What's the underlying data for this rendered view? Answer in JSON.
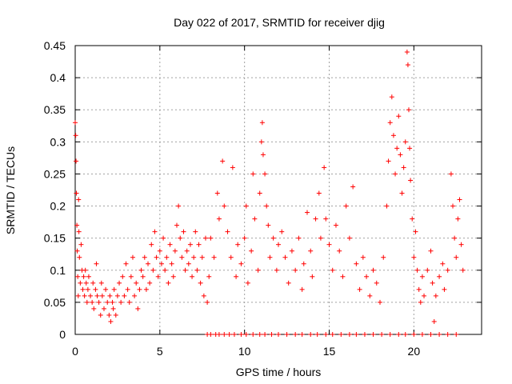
{
  "chart_data": {
    "type": "scatter",
    "title": "Day 022 of 2017, SRMTID for receiver djig",
    "xlabel": "GPS time / hours",
    "ylabel": "SRMTID / TECUs",
    "xlim": [
      0,
      24
    ],
    "ylim": [
      0,
      0.45
    ],
    "xticks": [
      0,
      5,
      10,
      15,
      20
    ],
    "xtick_labels": [
      "0",
      "5",
      "10",
      "15",
      "20"
    ],
    "yticks": [
      0,
      0.05,
      0.1,
      0.15,
      0.2,
      0.25,
      0.3,
      0.35,
      0.4,
      0.45
    ],
    "ytick_labels": [
      "0",
      "0.05",
      "0.1",
      "0.15",
      "0.2",
      "0.25",
      "0.3",
      "0.35",
      "0.4",
      "0.45"
    ],
    "grid": true,
    "marker": "+",
    "series": [
      {
        "name": "SRMTID",
        "color": "#ff0000",
        "points": [
          [
            0.0,
            0.33
          ],
          [
            0.03,
            0.31
          ],
          [
            0.05,
            0.27
          ],
          [
            0.07,
            0.22
          ],
          [
            0.1,
            0.17
          ],
          [
            0.12,
            0.13
          ],
          [
            0.15,
            0.09
          ],
          [
            0.18,
            0.06
          ],
          [
            0.2,
            0.21
          ],
          [
            0.22,
            0.16
          ],
          [
            0.25,
            0.12
          ],
          [
            0.3,
            0.08
          ],
          [
            0.35,
            0.14
          ],
          [
            0.4,
            0.1
          ],
          [
            0.45,
            0.07
          ],
          [
            0.5,
            0.09
          ],
          [
            0.55,
            0.06
          ],
          [
            0.6,
            0.1
          ],
          [
            0.65,
            0.08
          ],
          [
            0.7,
            0.05
          ],
          [
            0.75,
            0.07
          ],
          [
            0.8,
            0.09
          ],
          [
            0.9,
            0.06
          ],
          [
            1.0,
            0.05
          ],
          [
            1.05,
            0.08
          ],
          [
            1.1,
            0.04
          ],
          [
            1.2,
            0.07
          ],
          [
            1.25,
            0.11
          ],
          [
            1.3,
            0.06
          ],
          [
            1.4,
            0.05
          ],
          [
            1.5,
            0.03
          ],
          [
            1.55,
            0.08
          ],
          [
            1.6,
            0.06
          ],
          [
            1.7,
            0.04
          ],
          [
            1.8,
            0.07
          ],
          [
            1.9,
            0.05
          ],
          [
            2.0,
            0.03
          ],
          [
            2.05,
            0.06
          ],
          [
            2.1,
            0.02
          ],
          [
            2.2,
            0.05
          ],
          [
            2.25,
            0.04
          ],
          [
            2.3,
            0.07
          ],
          [
            2.4,
            0.03
          ],
          [
            2.5,
            0.06
          ],
          [
            2.6,
            0.08
          ],
          [
            2.7,
            0.05
          ],
          [
            2.8,
            0.09
          ],
          [
            2.9,
            0.06
          ],
          [
            3.0,
            0.11
          ],
          [
            3.1,
            0.07
          ],
          [
            3.2,
            0.05
          ],
          [
            3.3,
            0.09
          ],
          [
            3.4,
            0.12
          ],
          [
            3.5,
            0.06
          ],
          [
            3.6,
            0.08
          ],
          [
            3.7,
            0.04
          ],
          [
            3.8,
            0.07
          ],
          [
            3.9,
            0.1
          ],
          [
            4.0,
            0.09
          ],
          [
            4.1,
            0.12
          ],
          [
            4.2,
            0.07
          ],
          [
            4.3,
            0.11
          ],
          [
            4.4,
            0.08
          ],
          [
            4.5,
            0.14
          ],
          [
            4.6,
            0.1
          ],
          [
            4.7,
            0.16
          ],
          [
            4.8,
            0.12
          ],
          [
            4.9,
            0.09
          ],
          [
            5.0,
            0.13
          ],
          [
            5.1,
            0.11
          ],
          [
            5.2,
            0.15
          ],
          [
            5.3,
            0.1
          ],
          [
            5.4,
            0.12
          ],
          [
            5.5,
            0.08
          ],
          [
            5.6,
            0.14
          ],
          [
            5.7,
            0.11
          ],
          [
            5.8,
            0.09
          ],
          [
            5.9,
            0.13
          ],
          [
            6.0,
            0.17
          ],
          [
            6.1,
            0.2
          ],
          [
            6.2,
            0.15
          ],
          [
            6.3,
            0.12
          ],
          [
            6.4,
            0.16
          ],
          [
            6.5,
            0.1
          ],
          [
            6.6,
            0.13
          ],
          [
            6.7,
            0.11
          ],
          [
            6.8,
            0.14
          ],
          [
            6.9,
            0.09
          ],
          [
            7.0,
            0.12
          ],
          [
            7.1,
            0.16
          ],
          [
            7.2,
            0.1
          ],
          [
            7.3,
            0.14
          ],
          [
            7.4,
            0.08
          ],
          [
            7.5,
            0.12
          ],
          [
            7.6,
            0.06
          ],
          [
            7.7,
            0.15
          ],
          [
            7.8,
            0.05
          ],
          [
            7.9,
            0.09
          ],
          [
            8.0,
            0.15
          ],
          [
            8.2,
            0.12
          ],
          [
            8.4,
            0.22
          ],
          [
            8.5,
            0.18
          ],
          [
            8.7,
            0.27
          ],
          [
            8.8,
            0.2
          ],
          [
            9.0,
            0.16
          ],
          [
            9.2,
            0.12
          ],
          [
            9.3,
            0.26
          ],
          [
            9.5,
            0.09
          ],
          [
            9.6,
            0.14
          ],
          [
            9.8,
            0.11
          ],
          [
            10.0,
            0.15
          ],
          [
            10.1,
            0.2
          ],
          [
            10.2,
            0.08
          ],
          [
            10.4,
            0.13
          ],
          [
            10.5,
            0.25
          ],
          [
            10.6,
            0.18
          ],
          [
            10.8,
            0.1
          ],
          [
            10.9,
            0.22
          ],
          [
            11.0,
            0.3
          ],
          [
            11.05,
            0.33
          ],
          [
            11.1,
            0.28
          ],
          [
            11.2,
            0.25
          ],
          [
            11.3,
            0.2
          ],
          [
            11.4,
            0.17
          ],
          [
            11.5,
            0.12
          ],
          [
            11.7,
            0.15
          ],
          [
            11.9,
            0.1
          ],
          [
            12.0,
            0.14
          ],
          [
            12.2,
            0.16
          ],
          [
            12.4,
            0.12
          ],
          [
            12.6,
            0.08
          ],
          [
            12.8,
            0.13
          ],
          [
            13.0,
            0.1
          ],
          [
            13.2,
            0.15
          ],
          [
            13.4,
            0.07
          ],
          [
            13.5,
            0.11
          ],
          [
            13.7,
            0.19
          ],
          [
            13.9,
            0.13
          ],
          [
            14.0,
            0.09
          ],
          [
            14.2,
            0.18
          ],
          [
            14.4,
            0.22
          ],
          [
            14.5,
            0.15
          ],
          [
            14.7,
            0.26
          ],
          [
            14.8,
            0.18
          ],
          [
            15.0,
            0.14
          ],
          [
            15.2,
            0.1
          ],
          [
            15.4,
            0.17
          ],
          [
            15.6,
            0.13
          ],
          [
            15.8,
            0.09
          ],
          [
            16.0,
            0.2
          ],
          [
            16.2,
            0.15
          ],
          [
            16.4,
            0.23
          ],
          [
            16.6,
            0.11
          ],
          [
            16.8,
            0.07
          ],
          [
            17.0,
            0.12
          ],
          [
            17.2,
            0.09
          ],
          [
            17.4,
            0.06
          ],
          [
            17.6,
            0.1
          ],
          [
            17.8,
            0.08
          ],
          [
            18.0,
            0.05
          ],
          [
            18.2,
            0.12
          ],
          [
            18.4,
            0.2
          ],
          [
            18.5,
            0.27
          ],
          [
            18.6,
            0.33
          ],
          [
            18.7,
            0.37
          ],
          [
            18.8,
            0.31
          ],
          [
            18.9,
            0.25
          ],
          [
            19.0,
            0.29
          ],
          [
            19.1,
            0.34
          ],
          [
            19.2,
            0.28
          ],
          [
            19.3,
            0.22
          ],
          [
            19.4,
            0.26
          ],
          [
            19.5,
            0.3
          ],
          [
            19.6,
            0.44
          ],
          [
            19.65,
            0.42
          ],
          [
            19.7,
            0.35
          ],
          [
            19.75,
            0.29
          ],
          [
            19.8,
            0.24
          ],
          [
            19.9,
            0.18
          ],
          [
            20.0,
            0.12
          ],
          [
            20.1,
            0.16
          ],
          [
            20.2,
            0.1
          ],
          [
            20.3,
            0.07
          ],
          [
            20.4,
            0.05
          ],
          [
            20.5,
            0.09
          ],
          [
            20.6,
            0.06
          ],
          [
            20.8,
            0.1
          ],
          [
            21.0,
            0.13
          ],
          [
            21.1,
            0.08
          ],
          [
            21.2,
            0.02
          ],
          [
            21.3,
            0.06
          ],
          [
            21.5,
            0.09
          ],
          [
            21.7,
            0.11
          ],
          [
            21.8,
            0.07
          ],
          [
            22.0,
            0.1
          ],
          [
            22.2,
            0.25
          ],
          [
            22.3,
            0.2
          ],
          [
            22.4,
            0.15
          ],
          [
            22.5,
            0.12
          ],
          [
            22.6,
            0.18
          ],
          [
            22.7,
            0.21
          ],
          [
            22.8,
            0.14
          ],
          [
            22.9,
            0.1
          ],
          [
            7.8,
            0.0
          ],
          [
            8.0,
            0.0
          ],
          [
            8.3,
            0.0
          ],
          [
            8.5,
            0.0
          ],
          [
            8.8,
            0.0
          ],
          [
            9.1,
            0.0
          ],
          [
            9.4,
            0.0
          ],
          [
            9.8,
            0.0
          ],
          [
            10.1,
            0.0
          ],
          [
            10.5,
            0.0
          ],
          [
            10.9,
            0.0
          ],
          [
            11.2,
            0.0
          ],
          [
            11.6,
            0.0
          ],
          [
            12.0,
            0.0
          ],
          [
            12.5,
            0.0
          ],
          [
            13.0,
            0.0
          ],
          [
            13.4,
            0.0
          ],
          [
            13.9,
            0.0
          ],
          [
            14.3,
            0.0
          ],
          [
            14.8,
            0.0
          ],
          [
            15.2,
            0.0
          ],
          [
            15.7,
            0.0
          ],
          [
            16.2,
            0.0
          ],
          [
            16.6,
            0.0
          ],
          [
            17.1,
            0.0
          ],
          [
            17.6,
            0.0
          ],
          [
            18.1,
            0.0
          ],
          [
            18.6,
            0.0
          ],
          [
            19.1,
            0.0
          ],
          [
            19.5,
            0.0
          ],
          [
            20.0,
            0.0
          ],
          [
            20.5,
            0.0
          ],
          [
            21.0,
            0.0
          ],
          [
            21.5,
            0.0
          ],
          [
            22.0,
            0.0
          ],
          [
            22.5,
            0.0
          ]
        ]
      }
    ]
  }
}
